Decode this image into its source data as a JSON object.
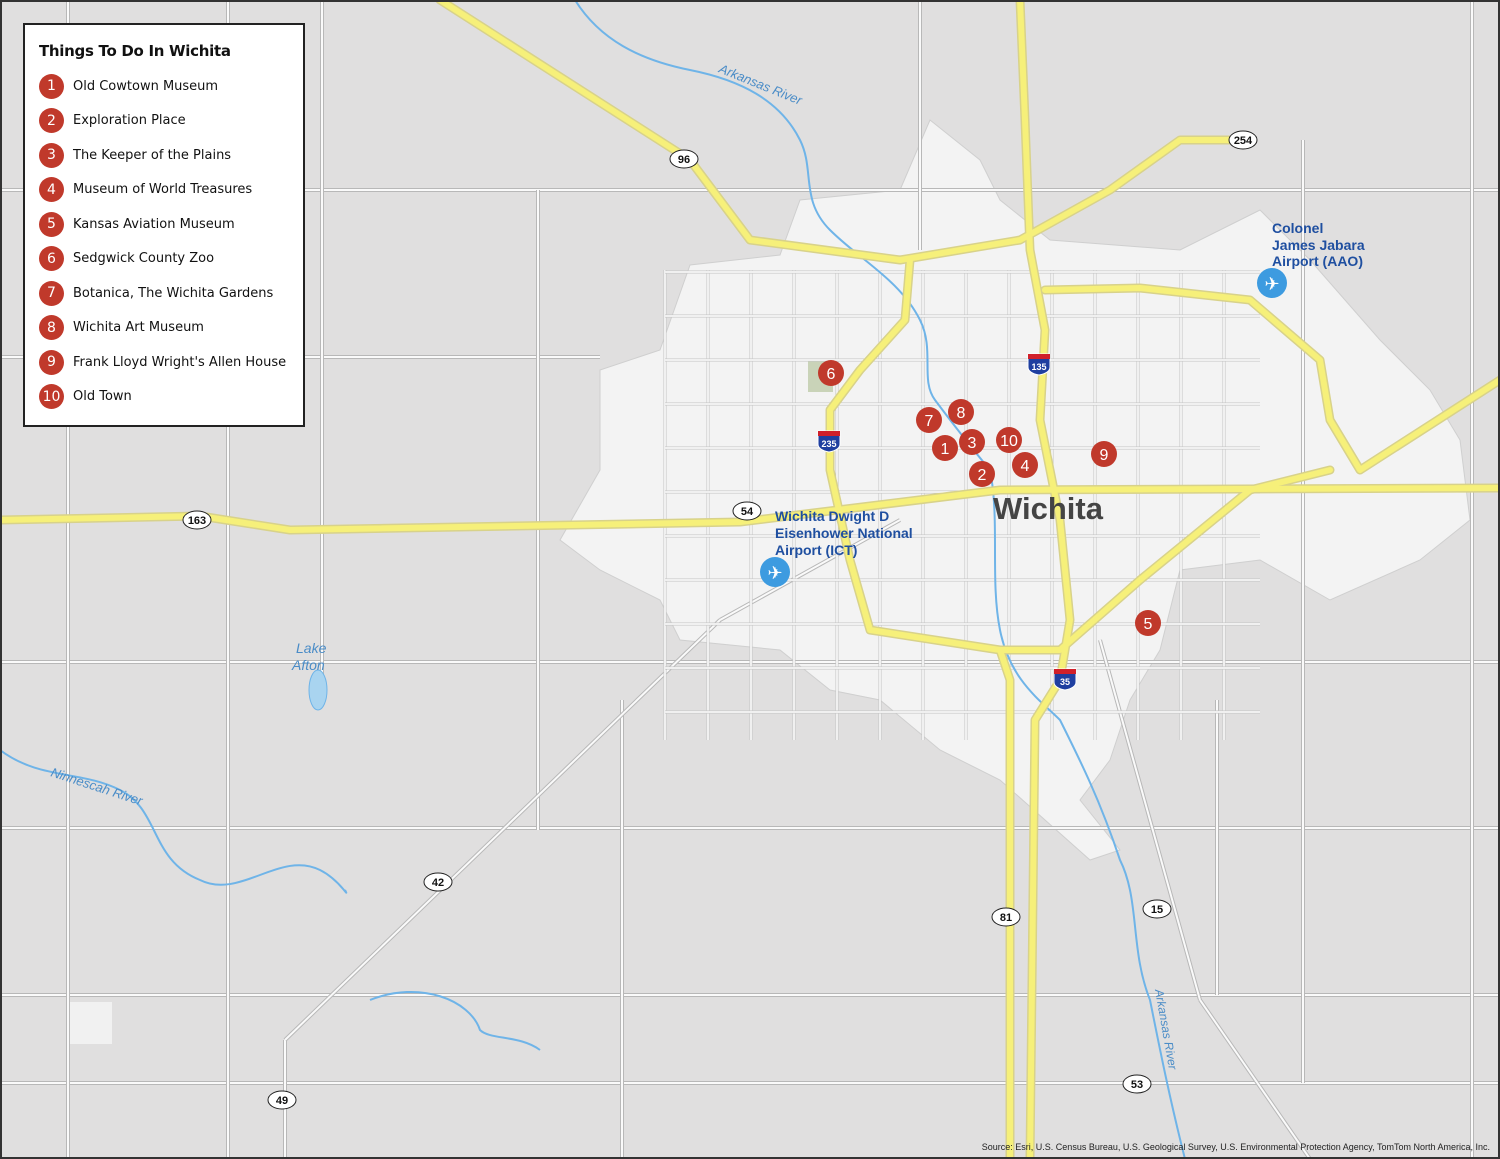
{
  "legend": {
    "title": "Things To Do In Wichita",
    "items": [
      {
        "num": "1",
        "label": "Old Cowtown Museum"
      },
      {
        "num": "2",
        "label": "Exploration Place"
      },
      {
        "num": "3",
        "label": "The Keeper of the Plains"
      },
      {
        "num": "4",
        "label": "Museum of World Treasures"
      },
      {
        "num": "5",
        "label": "Kansas Aviation Museum"
      },
      {
        "num": "6",
        "label": "Sedgwick County Zoo"
      },
      {
        "num": "7",
        "label": "Botanica, The Wichita Gardens"
      },
      {
        "num": "8",
        "label": "Wichita Art Museum"
      },
      {
        "num": "9",
        "label": "Frank Lloyd Wright's Allen House"
      },
      {
        "num": "10",
        "label": "Old Town"
      }
    ]
  },
  "map": {
    "city_label": "Wichita",
    "airports": [
      {
        "lines": [
          "Wichita Dwight D",
          "Eisenhower National",
          "Airport (ICT)"
        ],
        "icon": "airplane-icon"
      },
      {
        "lines": [
          "Colonel",
          "James Jabara",
          "Airport (AAO)"
        ],
        "icon": "airplane-icon"
      }
    ],
    "water_labels": {
      "arkansas_river_north": "Arkansas River",
      "arkansas_river_south": "Arkansas River",
      "ninnescah_river": "Ninnescah River",
      "lake_afton": [
        "Lake",
        "Afton"
      ]
    },
    "route_shields": [
      "96",
      "254",
      "163",
      "54",
      "42",
      "81",
      "15",
      "53",
      "49"
    ],
    "interstate_shields": [
      "135",
      "235",
      "35"
    ]
  },
  "source": "Source: Esri, U.S. Census Bureau, U.S. Geological Survey, U.S. Environmental Protection Agency, TomTom North America, Inc.",
  "colors": {
    "land": "#e0dfdf",
    "urban": "#f3f3f3",
    "highway": "#f6f07a",
    "water": "#6fb4e8",
    "marker": "#c0392b",
    "airport_label": "#1f4fa0"
  }
}
